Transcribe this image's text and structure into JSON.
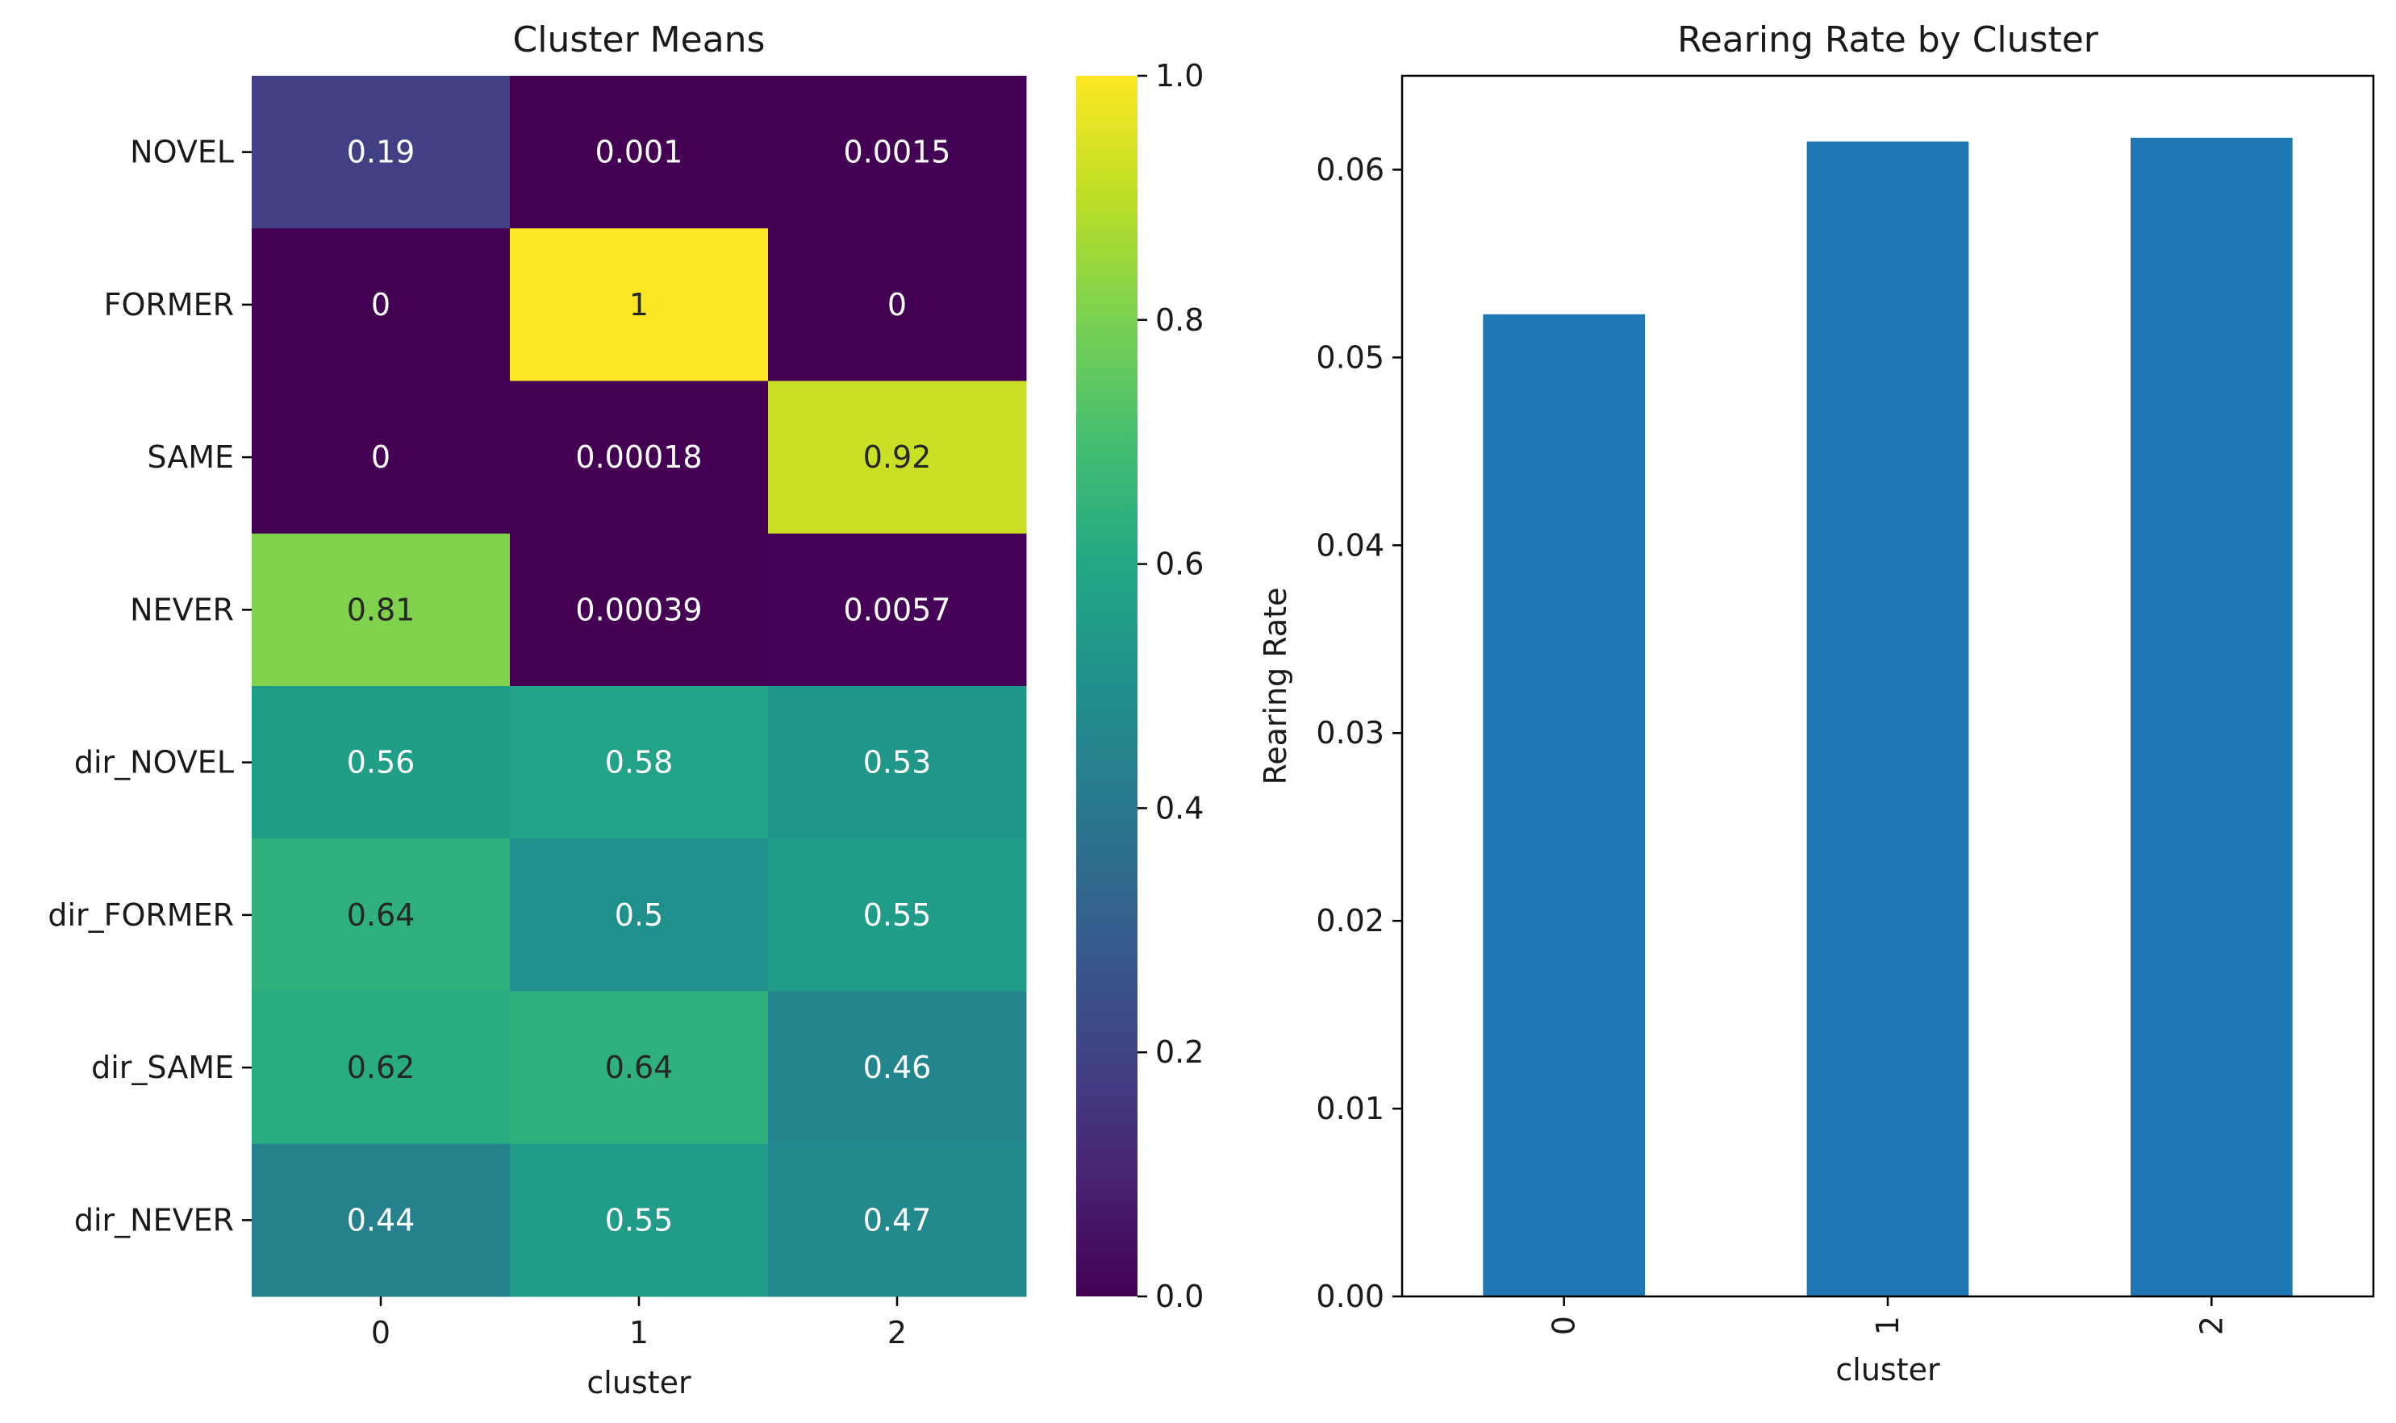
{
  "chart_data": [
    {
      "type": "heatmap",
      "title": "Cluster Means",
      "xlabel": "cluster",
      "ylabel": "",
      "x_categories": [
        "0",
        "1",
        "2"
      ],
      "y_categories": [
        "NOVEL",
        "FORMER",
        "SAME",
        "NEVER",
        "dir_NOVEL",
        "dir_FORMER",
        "dir_SAME",
        "dir_NEVER"
      ],
      "values": [
        [
          0.19,
          0.001,
          0.0015
        ],
        [
          0,
          1,
          0
        ],
        [
          0,
          0.00018,
          0.92
        ],
        [
          0.81,
          0.00039,
          0.0057
        ],
        [
          0.56,
          0.58,
          0.53
        ],
        [
          0.64,
          0.5,
          0.55
        ],
        [
          0.62,
          0.64,
          0.46
        ],
        [
          0.44,
          0.55,
          0.47
        ]
      ],
      "annotations": [
        [
          "0.19",
          "0.001",
          "0.0015"
        ],
        [
          "0",
          "1",
          "0"
        ],
        [
          "0",
          "0.00018",
          "0.92"
        ],
        [
          "0.81",
          "0.00039",
          "0.0057"
        ],
        [
          "0.56",
          "0.58",
          "0.53"
        ],
        [
          "0.64",
          "0.5",
          "0.55"
        ],
        [
          "0.62",
          "0.64",
          "0.46"
        ],
        [
          "0.44",
          "0.55",
          "0.47"
        ]
      ],
      "colormap": "viridis",
      "colorbar": {
        "range": [
          0.0,
          1.0
        ],
        "ticks": [
          0.0,
          0.2,
          0.4,
          0.6,
          0.8,
          1.0
        ],
        "tick_labels": [
          "0.0",
          "0.2",
          "0.4",
          "0.6",
          "0.8",
          "1.0"
        ]
      }
    },
    {
      "type": "bar",
      "title": "Rearing Rate by Cluster",
      "xlabel": "cluster",
      "ylabel": "Rearing Rate",
      "categories": [
        "0",
        "1",
        "2"
      ],
      "values": [
        0.0523,
        0.0615,
        0.0617
      ],
      "ylim": [
        0,
        0.065
      ],
      "yticks": [
        0.0,
        0.01,
        0.02,
        0.03,
        0.04,
        0.05,
        0.06
      ],
      "ytick_labels": [
        "0.00",
        "0.01",
        "0.02",
        "0.03",
        "0.04",
        "0.05",
        "0.06"
      ],
      "bar_color": "#1f77b4",
      "grid": false
    }
  ]
}
